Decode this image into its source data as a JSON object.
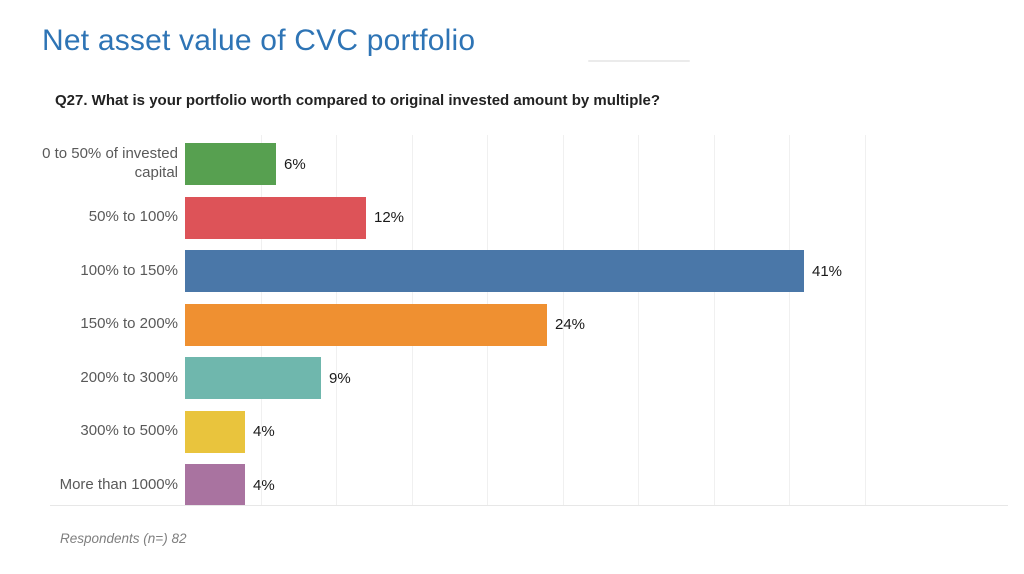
{
  "page": {
    "title": "Net asset value of CVC portfolio",
    "title_color": "#2e74b5",
    "subtitle": "Q27. What is your portfolio worth compared to original invested amount by multiple?",
    "footnote": "Respondents (n=) 82"
  },
  "chart_data": {
    "type": "bar",
    "orientation": "horizontal",
    "title": "",
    "xlabel": "",
    "ylabel": "",
    "categories": [
      "0 to 50% of invested capital",
      "50% to 100%",
      "100% to 150%",
      "150% to 200%",
      "200% to 300%",
      "300% to 500%",
      "More than 1000%"
    ],
    "values": [
      6,
      12,
      41,
      24,
      9,
      4,
      4
    ],
    "value_labels": [
      "6%",
      "12%",
      "41%",
      "24%",
      "9%",
      "4%",
      "4%"
    ],
    "bar_colors": [
      "#57a050",
      "#dd5358",
      "#4a77a8",
      "#ef9031",
      "#6fb7ad",
      "#e9c43d",
      "#a973a0"
    ],
    "label_color": "#595959",
    "value_label_color": "#1a1a1a",
    "gridline_color": "#f0f0f0",
    "grid": true,
    "legend": false,
    "xlim": [
      0,
      45
    ],
    "gridline_interval": 5
  }
}
